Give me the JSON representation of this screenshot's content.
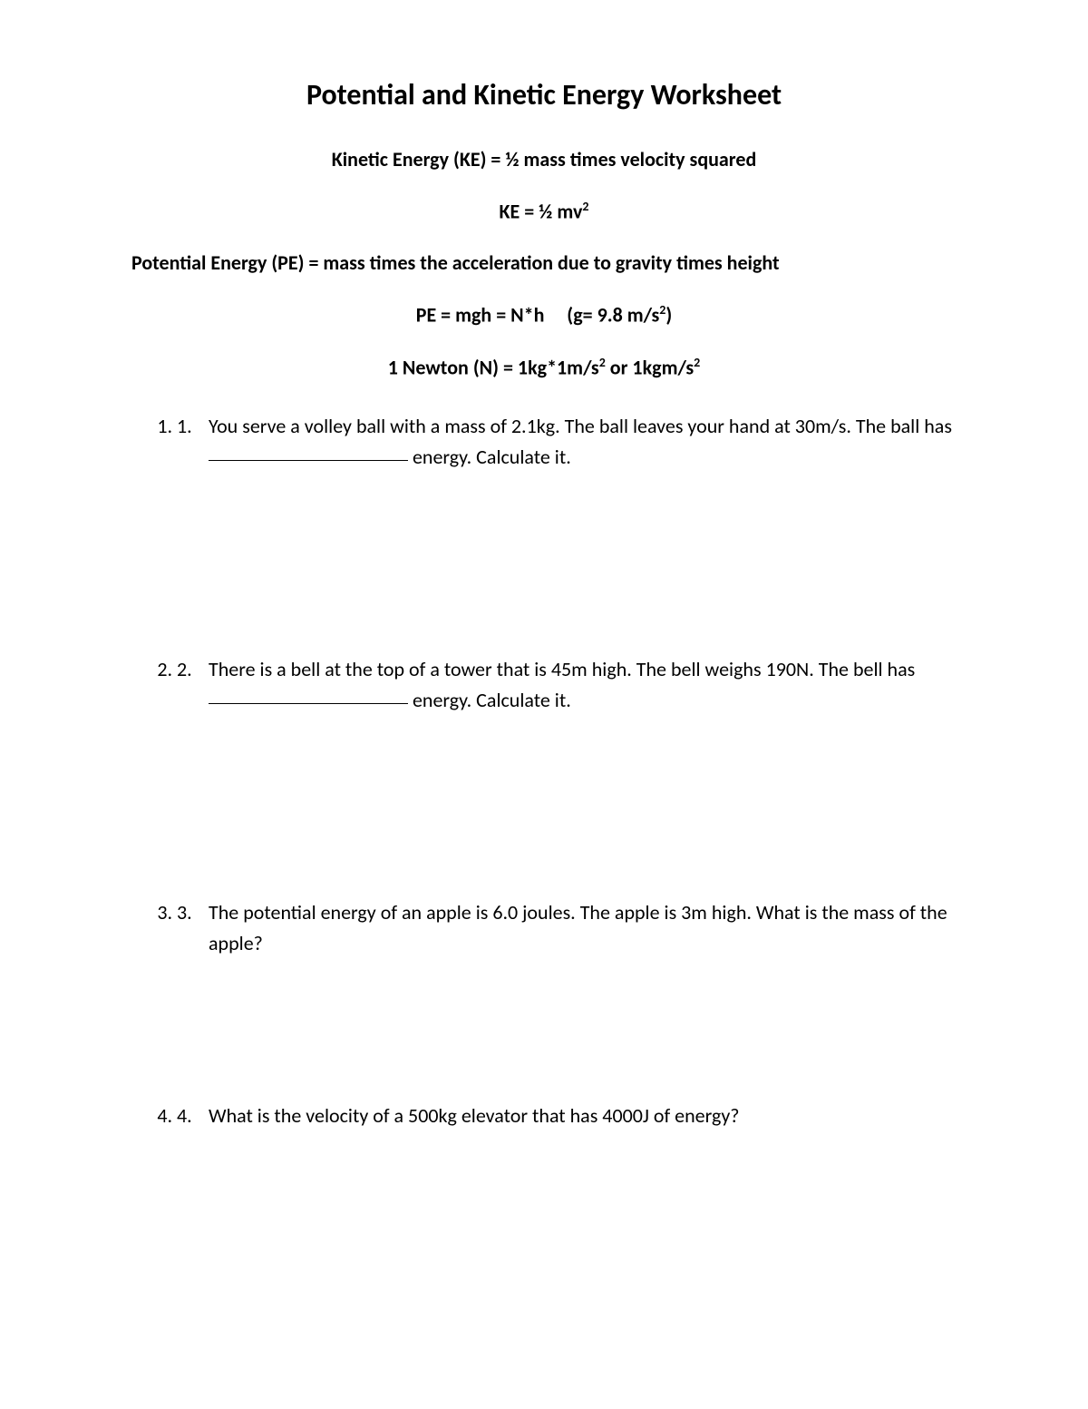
{
  "document": {
    "title": "Potential and Kinetic Energy Worksheet",
    "ke_definition": "Kinetic Energy (KE) = ½ mass times velocity squared",
    "ke_formula_prefix": "KE = ½ mv",
    "ke_formula_exp": "2",
    "pe_definition": "Potential Energy (PE) = mass times the acceleration due to gravity times height",
    "pe_formula_prefix": "PE = mgh = N*h     (g= 9.8 m/s",
    "pe_formula_exp": "2",
    "pe_formula_suffix": ")",
    "newton_prefix": "1 Newton (N) = 1kg*1m/s",
    "newton_exp1": "2",
    "newton_mid": " or 1kgm/s",
    "newton_exp2": "2",
    "questions": [
      {
        "number": "1.",
        "part1": "You serve a volley ball with a mass of 2.1kg. The ball leaves your hand at 30m/s. The ball has ",
        "part2": " energy. Calculate it."
      },
      {
        "number": "2.",
        "part1": "There is a bell at the top of a tower that is 45m high. The bell weighs 190N. The bell has ",
        "part2": " energy. Calculate it."
      },
      {
        "number": "3.",
        "part1": "The potential energy of an apple is 6.0 joules. The apple is 3m high. What is the mass of the apple?",
        "part2": ""
      },
      {
        "number": "4.",
        "part1": "What is the velocity of a 500kg elevator that has 4000J of energy?",
        "part2": ""
      }
    ],
    "colors": {
      "background": "#ffffff",
      "text": "#000000"
    },
    "typography": {
      "title_fontsize": 32,
      "body_fontsize": 22,
      "font_family": "Calibri"
    }
  }
}
